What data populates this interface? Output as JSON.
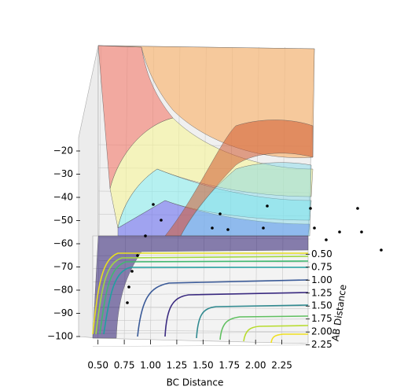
{
  "chart_data": {
    "type": "surface3d",
    "xlabel": "BC Distance",
    "ylabel": "AB Distance",
    "xlim": [
      0.45,
      2.5
    ],
    "xticks": [
      {
        "value": 0.5,
        "label": "0.50"
      },
      {
        "value": 0.75,
        "label": "0.75"
      },
      {
        "value": 1.0,
        "label": "1.00"
      },
      {
        "value": 1.25,
        "label": "1.25"
      },
      {
        "value": 1.5,
        "label": "1.50"
      },
      {
        "value": 1.75,
        "label": "1.75"
      },
      {
        "value": 2.0,
        "label": "2.00"
      },
      {
        "value": 2.25,
        "label": "2.25"
      }
    ],
    "ylim": [
      0.45,
      2.3
    ],
    "yticks": [
      {
        "value": 0.5,
        "label": "0.50"
      },
      {
        "value": 0.75,
        "label": "0.75"
      },
      {
        "value": 1.0,
        "label": "1.00"
      },
      {
        "value": 1.25,
        "label": "1.25"
      },
      {
        "value": 1.5,
        "label": "1.50"
      },
      {
        "value": 1.75,
        "label": "1.75"
      },
      {
        "value": 2.0,
        "label": "2.00"
      },
      {
        "value": 2.25,
        "label": "2.25"
      }
    ],
    "zlim": [
      -100,
      -20
    ],
    "zticks": [
      {
        "value": -20,
        "label": "−20"
      },
      {
        "value": -30,
        "label": "−30"
      },
      {
        "value": -40,
        "label": "−40"
      },
      {
        "value": -50,
        "label": "−50"
      },
      {
        "value": -60,
        "label": "−60"
      },
      {
        "value": -70,
        "label": "−70"
      },
      {
        "value": -80,
        "label": "−80"
      },
      {
        "value": -90,
        "label": "−90"
      },
      {
        "value": -100,
        "label": "−100"
      }
    ],
    "grid": true
  }
}
